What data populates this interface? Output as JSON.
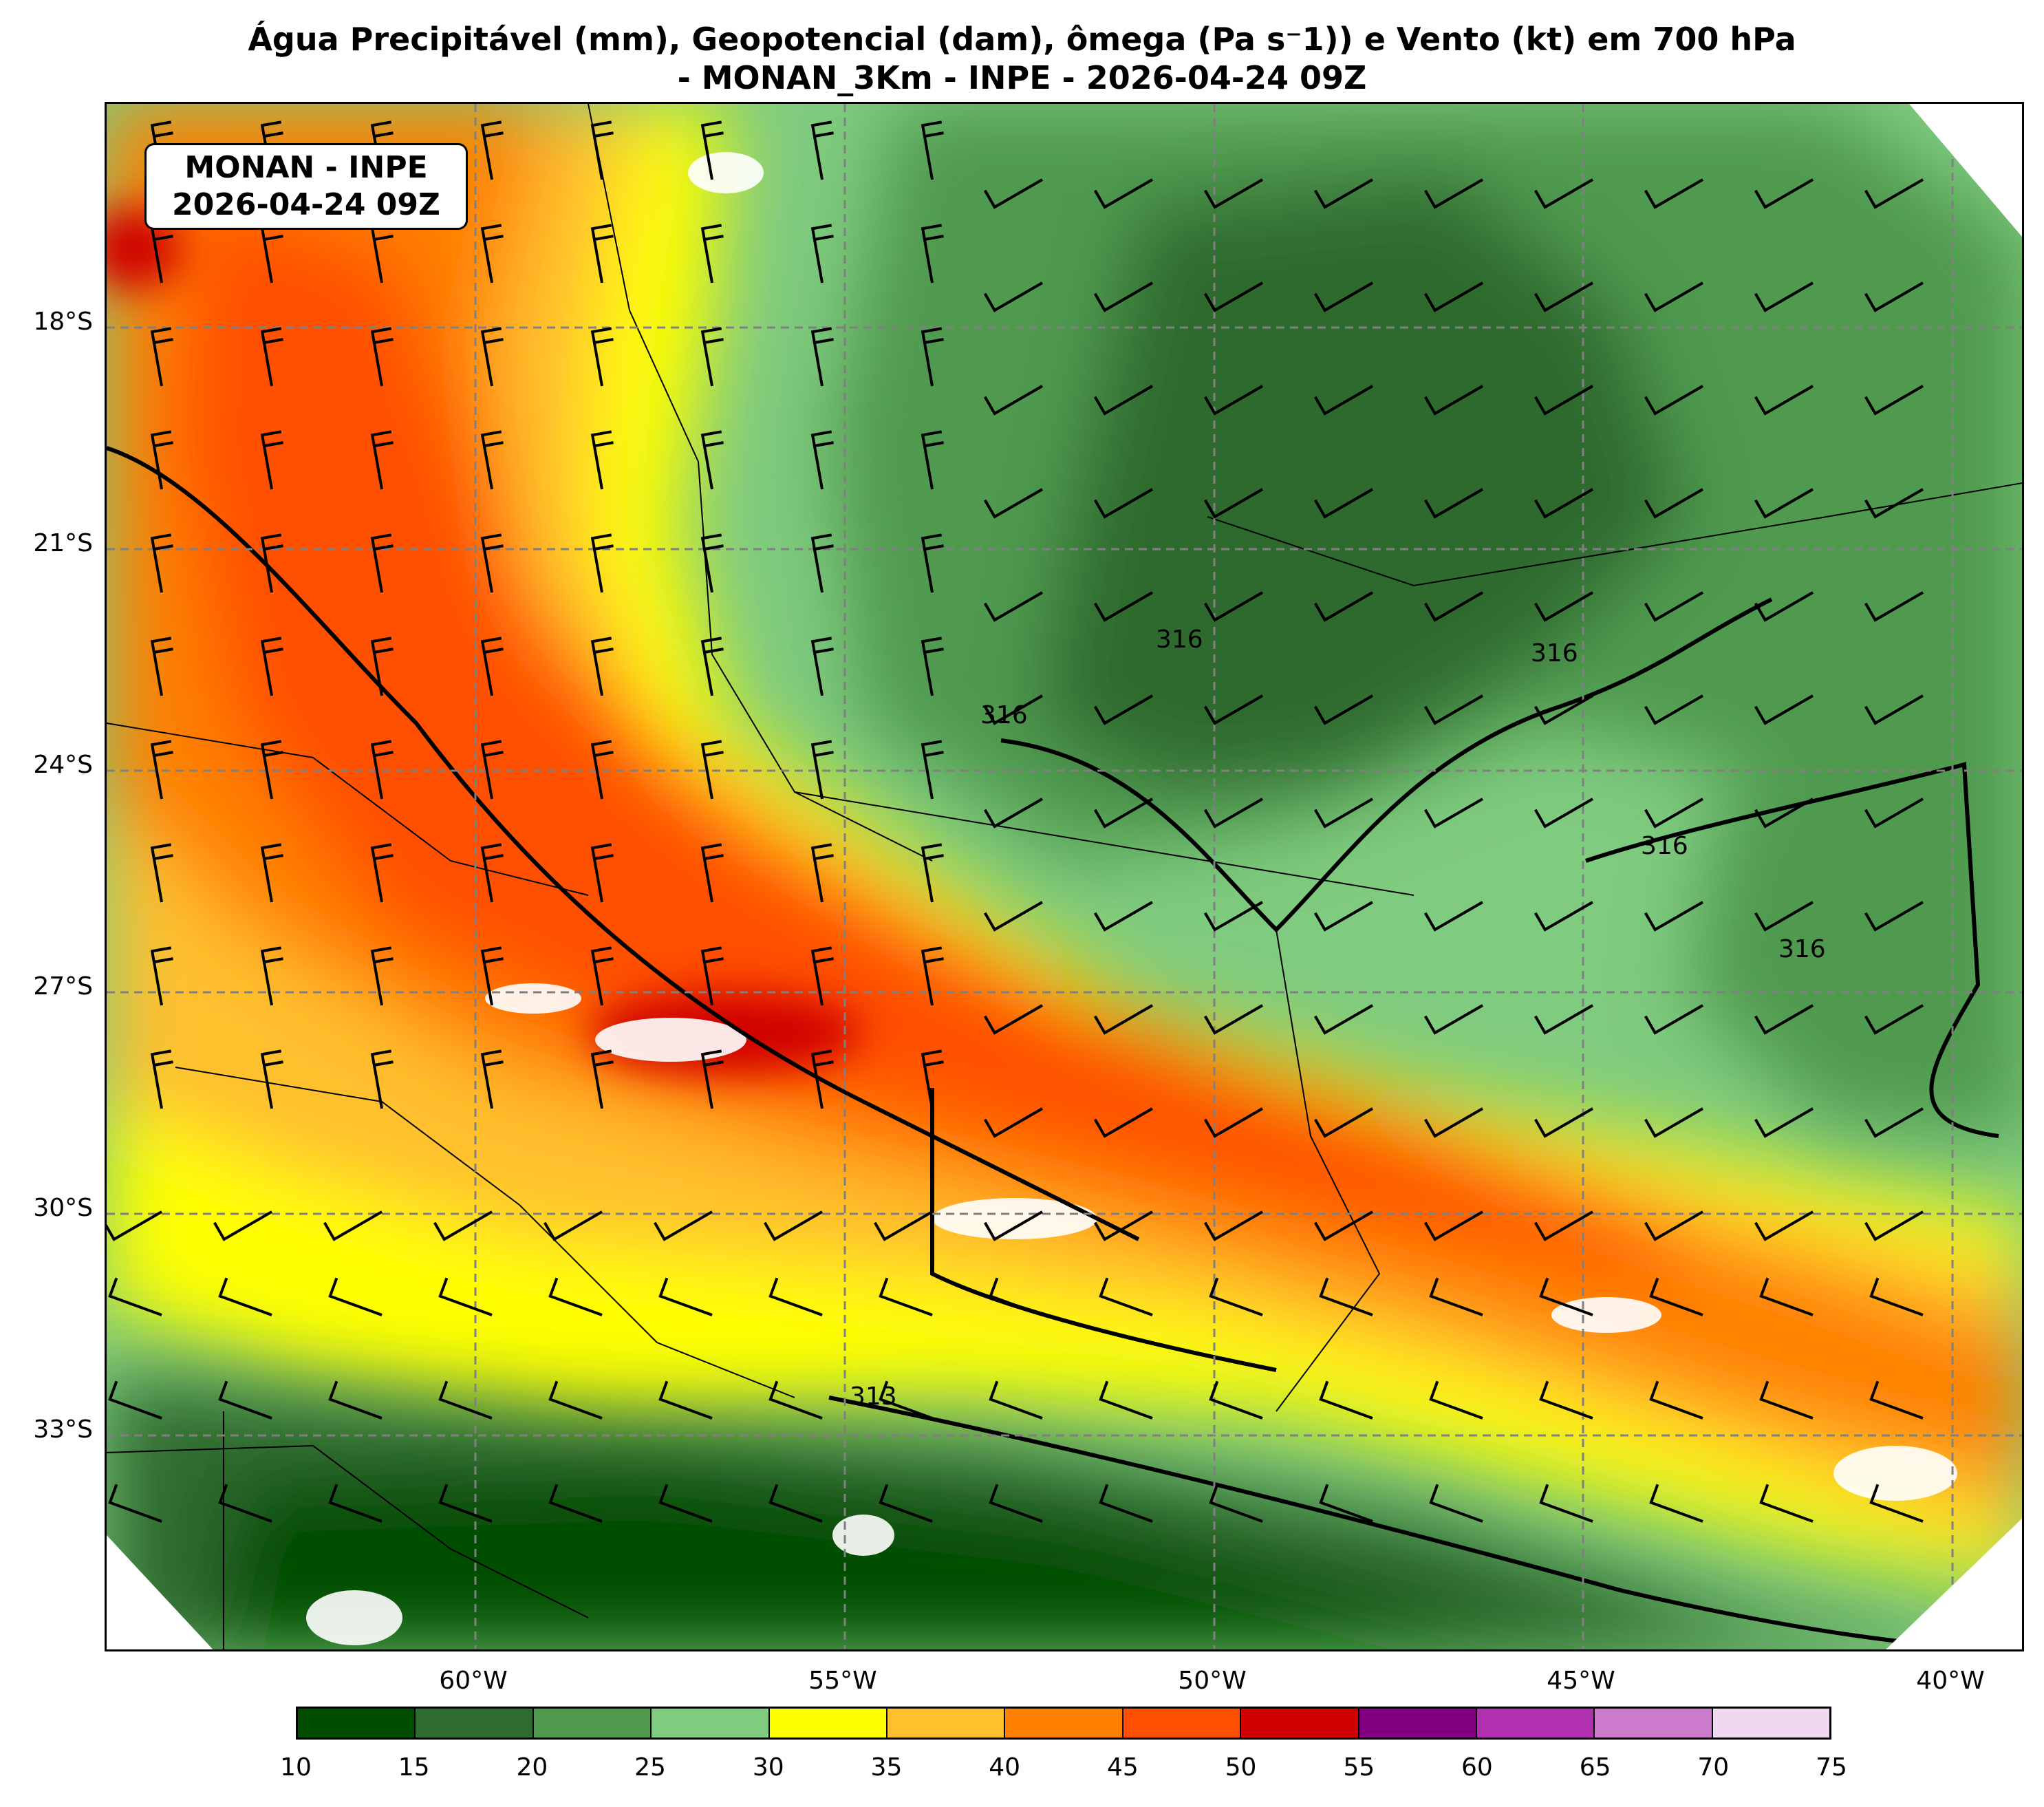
{
  "title": {
    "line1": "Água Precipitável (mm), Geopotencial (dam), ômega (Pa s⁻1)) e Vento (kt) em 700 hPa",
    "line2": "- MONAN_3Km - INPE - 2026-04-24 09Z"
  },
  "info_box": {
    "line1": "MONAN - INPE",
    "line2": "2026-04-24 09Z"
  },
  "lat_labels": [
    "18°S",
    "21°S",
    "24°S",
    "27°S",
    "30°S",
    "33°S"
  ],
  "lon_labels": [
    "60°W",
    "55°W",
    "50°W",
    "45°W",
    "40°W"
  ],
  "contour_labels": [
    "316",
    "316",
    "316",
    "316",
    "316",
    "313"
  ],
  "colorbar": {
    "ticks": [
      "10",
      "15",
      "20",
      "25",
      "30",
      "35",
      "40",
      "45",
      "50",
      "55",
      "60",
      "65",
      "70",
      "75"
    ],
    "colors": [
      "#004d00",
      "#2e6b2e",
      "#4f9a4f",
      "#7fcb7f",
      "#ffff00",
      "#ffc02e",
      "#ff8000",
      "#ff4f00",
      "#d00000",
      "#800080",
      "#b030b0",
      "#cc7acc",
      "#f0d8f0"
    ]
  },
  "map_extent": {
    "lon_min": -64.95,
    "lon_max": -38.95,
    "lat_top": -15.1,
    "lat_bottom": -36.1
  },
  "gridlines": "dashed",
  "legend_placement": "bottom"
}
